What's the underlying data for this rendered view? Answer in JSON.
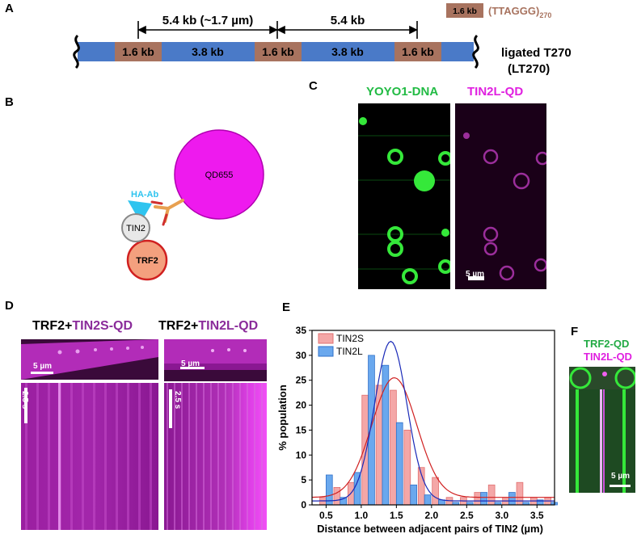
{
  "panels": {
    "a": "A",
    "b": "B",
    "c": "C",
    "d": "D",
    "e": "E",
    "f": "F"
  },
  "panel_a": {
    "spacing_left": "5.4 kb (~1.7 µm)",
    "spacing_right": "5.4 kb",
    "segments": [
      "1.6 kb",
      "3.8 kb",
      "1.6 kb",
      "3.8 kb",
      "1.6 kb"
    ],
    "legend_box": "1.6 kb",
    "legend_text": "(TTAGGG)",
    "legend_sub": "270",
    "construct_line1": "ligated T270",
    "construct_line2": "(LT270)",
    "colors": {
      "repeat": "#a8735f",
      "spacer": "#4a7ac8"
    }
  },
  "panel_b": {
    "qd": "QD655",
    "antibody": "HA-Ab",
    "tin2": "TIN2",
    "trf2": "TRF2"
  },
  "panel_c": {
    "left_title": "YOYO1-DNA",
    "right_title": "TIN2L-QD",
    "scale_bar": "5 µm"
  },
  "panel_d": {
    "left_title_prefix": "TRF2+",
    "left_title_highlight": "TIN2S-QD",
    "right_title_prefix": "TRF2+",
    "right_title_highlight": "TIN2L-QD",
    "left_scale": "5 µm",
    "right_scale": "5 µm",
    "left_time": "2.5 s",
    "right_time": "2.5 s"
  },
  "panel_f": {
    "title_green": "TRF2-QD",
    "title_magenta": "TIN2L-QD",
    "scale_bar": "5 µm"
  },
  "chart_data": {
    "type": "bar",
    "title": "",
    "xlabel": "Distance between adjacent pairs of TIN2 (µm)",
    "ylabel": "% population",
    "xlim": [
      0.3,
      3.75
    ],
    "ylim": [
      0,
      35
    ],
    "xticks": [
      "0.5",
      "1.0",
      "1.5",
      "2.0",
      "2.5",
      "3.0",
      "3.5"
    ],
    "yticks": [
      "0",
      "5",
      "10",
      "15",
      "20",
      "25",
      "30",
      "35"
    ],
    "bin_centers": [
      0.5,
      0.7,
      0.9,
      1.1,
      1.3,
      1.5,
      1.7,
      1.9,
      2.1,
      2.3,
      2.5,
      2.7,
      2.9,
      3.1,
      3.3,
      3.5,
      3.7
    ],
    "legend_position": "top-left",
    "series": [
      {
        "name": "TIN2S",
        "color": "#f4a7a7",
        "values": [
          1.5,
          3.5,
          4.5,
          22,
          24,
          23,
          15,
          7.5,
          5.5,
          1.5,
          1.5,
          2.5,
          4,
          1.5,
          4.5,
          1.5,
          1.5
        ],
        "fit": {
          "amp": 24,
          "mu": 1.47,
          "sigma": 0.32,
          "base": 1.5
        }
      },
      {
        "name": "TIN2L",
        "color": "#6aa8ee",
        "values": [
          6,
          1.5,
          6.5,
          30,
          28,
          16.5,
          4,
          2,
          1,
          0.5,
          0.5,
          2.5,
          0.5,
          2.5,
          0.5,
          1,
          0.5
        ],
        "fit": {
          "amp": 32,
          "mu": 1.42,
          "sigma": 0.23,
          "base": 0.8
        }
      }
    ]
  }
}
